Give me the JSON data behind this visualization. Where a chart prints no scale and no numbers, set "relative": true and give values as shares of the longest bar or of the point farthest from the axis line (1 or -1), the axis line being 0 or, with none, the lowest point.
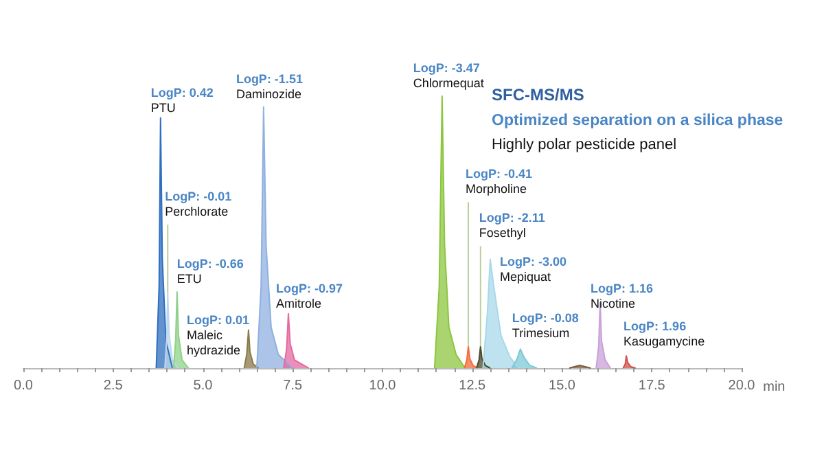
{
  "chart_data": {
    "type": "area",
    "relative": true,
    "title": "SFC-MS/MS",
    "subtitle": "Optimized separation on a silica phase",
    "xlabel": "min",
    "xlim": [
      0,
      20
    ],
    "xticks": [
      {
        "value": 0,
        "label": "0.0"
      },
      {
        "value": 0.5,
        "label": null
      },
      {
        "value": 1,
        "label": null
      },
      {
        "value": 1.5,
        "label": null
      },
      {
        "value": 2,
        "label": null
      },
      {
        "value": 2.5,
        "label": "2.5"
      },
      {
        "value": 3,
        "label": null
      },
      {
        "value": 3.5,
        "label": null
      },
      {
        "value": 4,
        "label": null
      },
      {
        "value": 4.5,
        "label": null
      },
      {
        "value": 5,
        "label": "5.0"
      },
      {
        "value": 5.5,
        "label": null
      },
      {
        "value": 6,
        "label": null
      },
      {
        "value": 6.5,
        "label": null
      },
      {
        "value": 7,
        "label": null
      },
      {
        "value": 7.5,
        "label": "7.5"
      },
      {
        "value": 8,
        "label": null
      },
      {
        "value": 8.5,
        "label": null
      },
      {
        "value": 9,
        "label": null
      },
      {
        "value": 9.5,
        "label": null
      },
      {
        "value": 10,
        "label": "10.0"
      },
      {
        "value": 10.5,
        "label": null
      },
      {
        "value": 11,
        "label": null
      },
      {
        "value": 11.5,
        "label": null
      },
      {
        "value": 12,
        "label": null
      },
      {
        "value": 12.5,
        "label": "12.5"
      },
      {
        "value": 13,
        "label": null
      },
      {
        "value": 13.5,
        "label": null
      },
      {
        "value": 14,
        "label": null
      },
      {
        "value": 14.5,
        "label": null
      },
      {
        "value": 15,
        "label": "15.0"
      },
      {
        "value": 15.5,
        "label": null
      },
      {
        "value": 16,
        "label": null
      },
      {
        "value": 16.5,
        "label": null
      },
      {
        "value": 17,
        "label": null
      },
      {
        "value": 17.5,
        "label": "17.5"
      },
      {
        "value": 18,
        "label": null
      },
      {
        "value": 18.5,
        "label": null
      },
      {
        "value": 19,
        "label": null
      },
      {
        "value": 19.5,
        "label": null
      },
      {
        "value": 20,
        "label": "20.0"
      }
    ],
    "series": [
      {
        "color": "#2f6fbf",
        "x": [
          3.7,
          3.78,
          3.82,
          3.87,
          3.97,
          4.15
        ],
        "values": [
          0,
          0.3,
          0.92,
          0.4,
          0.1,
          0
        ]
      },
      {
        "color": "#bcd7ee",
        "x": [
          3.94,
          3.99,
          4.02,
          4.06,
          4.15,
          4.3
        ],
        "values": [
          0,
          0.1,
          0.28,
          0.12,
          0.03,
          0
        ]
      },
      {
        "color": "#8fd18a",
        "x": [
          4.18,
          4.24,
          4.28,
          4.32,
          4.42,
          4.6
        ],
        "values": [
          0,
          0.1,
          0.28,
          0.12,
          0.03,
          0
        ]
      },
      {
        "color": "#8a7a4a",
        "x": [
          6.15,
          6.22,
          6.27,
          6.31,
          6.4,
          6.55
        ],
        "values": [
          0,
          0.05,
          0.14,
          0.06,
          0.015,
          0
        ]
      },
      {
        "color": "#8fb0e0",
        "x": [
          6.5,
          6.62,
          6.69,
          6.76,
          6.9,
          7.1,
          7.5
        ],
        "values": [
          0,
          0.3,
          0.96,
          0.45,
          0.15,
          0.05,
          0
        ]
      },
      {
        "color": "#e46aa0",
        "x": [
          7.25,
          7.33,
          7.38,
          7.43,
          7.55,
          7.75,
          7.95
        ],
        "values": [
          0,
          0.07,
          0.2,
          0.09,
          0.03,
          0.015,
          0
        ]
      },
      {
        "color": "#8cc63f",
        "x": [
          11.45,
          11.58,
          11.66,
          11.73,
          11.85,
          12.05,
          12.3
        ],
        "values": [
          0,
          0.3,
          1,
          0.45,
          0.15,
          0.05,
          0
        ]
      },
      {
        "color": "#f26b3a",
        "x": [
          12.28,
          12.35,
          12.39,
          12.43,
          12.52,
          12.65
        ],
        "values": [
          0,
          0.03,
          0.08,
          0.035,
          0.01,
          0
        ]
      },
      {
        "color": "#4a4a2a",
        "x": [
          12.62,
          12.69,
          12.73,
          12.77,
          12.86,
          13.0
        ],
        "values": [
          0,
          0.03,
          0.08,
          0.035,
          0.01,
          0
        ]
      },
      {
        "color": "#a8d8ea",
        "x": [
          12.8,
          12.92,
          13.0,
          13.1,
          13.3,
          13.55,
          13.8
        ],
        "values": [
          0,
          0.2,
          0.4,
          0.3,
          0.12,
          0.04,
          0
        ]
      },
      {
        "color": "#7ec8d8",
        "x": [
          13.6,
          13.75,
          13.84,
          13.94,
          14.1,
          14.3
        ],
        "values": [
          0,
          0.035,
          0.07,
          0.04,
          0.01,
          0
        ]
      },
      {
        "color": "#7a5c3a",
        "x": [
          15.2,
          15.49,
          15.8
        ],
        "values": [
          0,
          0.01,
          0
        ]
      },
      {
        "color": "#c9a0d8",
        "x": [
          15.95,
          16.02,
          16.06,
          16.1,
          16.2,
          16.35
        ],
        "values": [
          0,
          0.08,
          0.24,
          0.1,
          0.03,
          0
        ]
      },
      {
        "color": "#d2504a",
        "x": [
          16.7,
          16.76,
          16.79,
          16.83,
          16.92,
          17.05
        ],
        "values": [
          0,
          0.015,
          0.045,
          0.02,
          0.005,
          0
        ]
      }
    ],
    "annotations": [
      "Highly polar pesticide panel",
      {
        "text": "LogP: 0.42\nPTU",
        "x": 3.82,
        "y": 0.92
      },
      {
        "text": "LogP: -0.01\nPerchlorate",
        "x": 4.02,
        "y": 0.28
      },
      {
        "text": "LogP: -0.66\nETU",
        "x": 4.28,
        "y": 0.28
      },
      {
        "text": "LogP: 0.01\nMaleic\nhydrazide",
        "x": 6.27,
        "y": 0.14
      },
      {
        "text": "LogP: -1.51\nDaminozide",
        "x": 6.69,
        "y": 0.96
      },
      {
        "text": "LogP: -0.97\nAmitrole",
        "x": 7.38,
        "y": 0.2
      },
      {
        "text": "LogP: -3.47\nChlormequat",
        "x": 11.66,
        "y": 1
      },
      {
        "text": "LogP: -0.41\nMorpholine",
        "x": 12.39,
        "y": 0.08
      },
      {
        "text": "LogP: -2.11\nFosethyl",
        "x": 12.73,
        "y": 0.08
      },
      {
        "text": "LogP: -3.00\nMepiquat",
        "x": 13.0,
        "y": 0.4
      },
      {
        "text": "LogP: -0.08\nTrimesium",
        "x": 13.84,
        "y": 0.07
      },
      {
        "text": "LogP: 1.16\nNicotine",
        "x": 16.06,
        "y": 0.24
      },
      {
        "text": "LogP: 1.96\nKasugamycine",
        "x": 16.79,
        "y": 0.045
      }
    ]
  }
}
